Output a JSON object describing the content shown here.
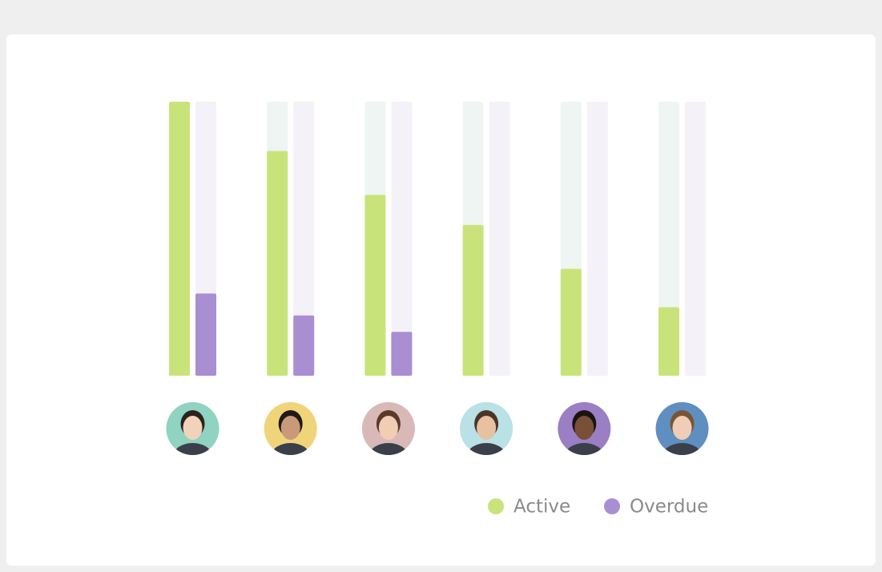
{
  "chart_data": {
    "type": "bar",
    "categories": [
      null,
      null,
      null,
      null,
      null,
      null
    ],
    "series": [
      {
        "name": "Active",
        "color": "#c9e37b",
        "values": [
          100,
          82,
          66,
          55,
          39,
          25
        ]
      },
      {
        "name": "Overdue",
        "color": "#a98fd1",
        "values": [
          30,
          22,
          16,
          0,
          0,
          0
        ]
      }
    ],
    "ylim": [
      0,
      100
    ]
  }
}
